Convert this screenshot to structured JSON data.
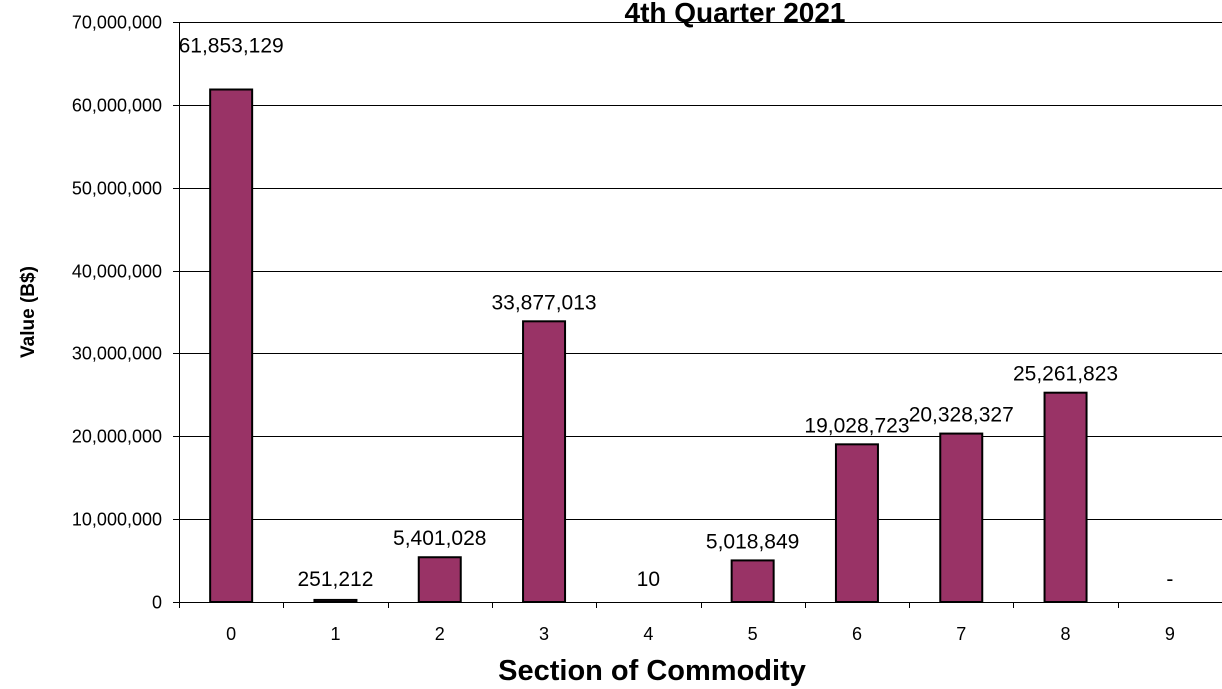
{
  "chart_data": {
    "type": "bar",
    "title": "4th Quarter 2021",
    "xlabel": "Section of Commodity",
    "ylabel": "Value (B$)",
    "ylim": [
      0,
      70000000
    ],
    "yticks": [
      "0",
      "10,000,000",
      "20,000,000",
      "30,000,000",
      "40,000,000",
      "50,000,000",
      "60,000,000",
      "70,000,000"
    ],
    "categories": [
      "0",
      "1",
      "2",
      "3",
      "4",
      "5",
      "6",
      "7",
      "8",
      "9"
    ],
    "values": [
      61853129,
      251212,
      5401028,
      33877013,
      10,
      5018849,
      19028723,
      20328327,
      25261823,
      0
    ],
    "data_labels": [
      "61,853,129",
      "251,212",
      "5,401,028",
      "33,877,013",
      "10",
      "5,018,849",
      "19,028,723",
      "20,328,327",
      "25,261,823",
      "-"
    ],
    "grid": true,
    "legend": "none",
    "bar_color": "#993366"
  }
}
